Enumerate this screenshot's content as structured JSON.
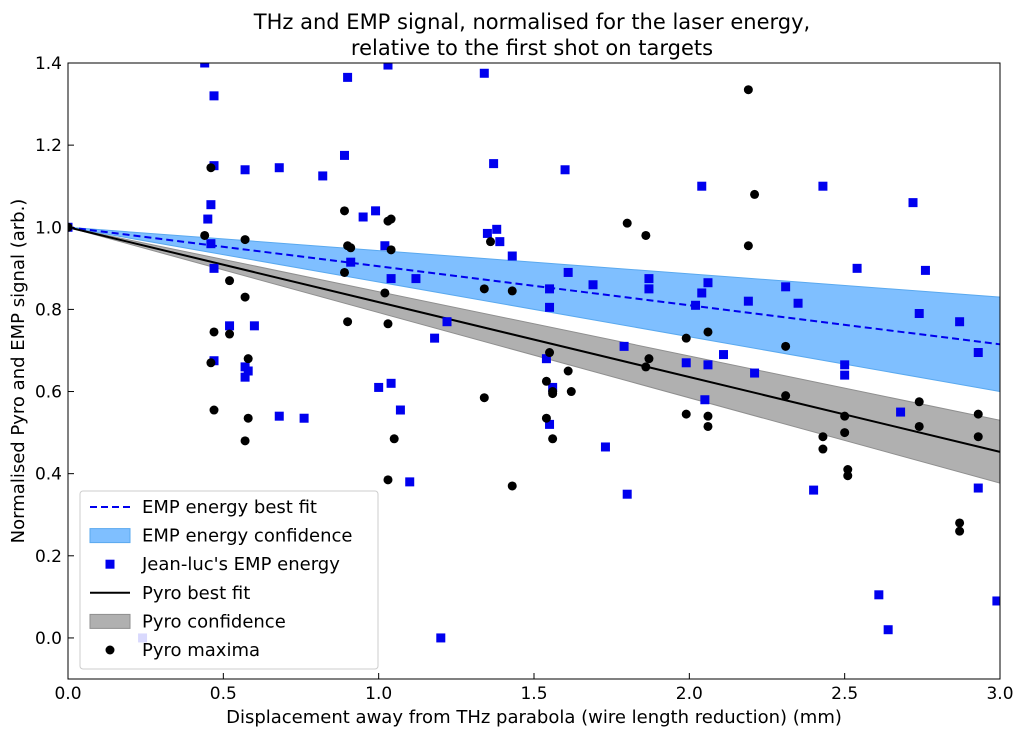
{
  "chart_data": {
    "type": "scatter",
    "title_lines": [
      "THz and EMP signal, normalised for the laser energy,",
      "relative to the first shot on targets"
    ],
    "xlabel": "Displacement away from THz parabola (wire length reduction) (mm)",
    "ylabel": "Normalised Pyro and EMP signal (arb.)",
    "xlim": [
      0.0,
      3.0
    ],
    "ylim": [
      -0.1,
      1.4
    ],
    "xticks": [
      "0.0",
      "0.5",
      "1.0",
      "1.5",
      "2.0",
      "2.5",
      "3.0"
    ],
    "yticks": [
      "0.0",
      "0.2",
      "0.4",
      "0.6",
      "0.8",
      "1.0",
      "1.2",
      "1.4"
    ],
    "grid": false,
    "legend_position": "lower-left",
    "colors": {
      "emp": "#0000ee",
      "emp_band": "#7fbfff",
      "pyro": "#000000",
      "pyro_band": "#b0b0b0"
    },
    "emp_fit": {
      "name": "EMP energy best fit",
      "points": [
        [
          0.0,
          1.0
        ],
        [
          3.0,
          0.715
        ]
      ],
      "style": "dashed"
    },
    "emp_band": {
      "name": "EMP energy confidence",
      "upper": [
        [
          0.0,
          1.0
        ],
        [
          3.0,
          0.83
        ]
      ],
      "lower": [
        [
          0.0,
          1.0
        ],
        [
          3.0,
          0.6
        ]
      ]
    },
    "pyro_fit": {
      "name": "Pyro best fit",
      "points": [
        [
          0.0,
          1.0
        ],
        [
          3.0,
          0.453
        ]
      ],
      "style": "solid"
    },
    "pyro_band": {
      "name": "Pyro confidence",
      "upper": [
        [
          0.0,
          1.0
        ],
        [
          3.0,
          0.53
        ]
      ],
      "lower": [
        [
          0.0,
          1.0
        ],
        [
          3.0,
          0.377
        ]
      ]
    },
    "emp_points": {
      "name": "Jean-luc's EMP energy",
      "x": [
        0.0,
        0.24,
        0.44,
        0.45,
        0.46,
        0.46,
        0.47,
        0.47,
        0.47,
        0.47,
        0.52,
        0.57,
        0.57,
        0.57,
        0.58,
        0.6,
        0.68,
        0.68,
        0.76,
        0.82,
        0.89,
        0.9,
        0.91,
        0.95,
        0.99,
        1.0,
        1.02,
        1.03,
        1.04,
        1.04,
        1.07,
        1.1,
        1.12,
        1.18,
        1.2,
        1.22,
        1.34,
        1.35,
        1.37,
        1.38,
        1.39,
        1.43,
        1.54,
        1.55,
        1.55,
        1.55,
        1.56,
        1.6,
        1.61,
        1.69,
        1.73,
        1.79,
        1.8,
        1.87,
        1.87,
        1.99,
        2.02,
        2.04,
        2.04,
        2.05,
        2.06,
        2.06,
        2.11,
        2.19,
        2.21,
        2.31,
        2.35,
        2.4,
        2.43,
        2.5,
        2.5,
        2.54,
        2.61,
        2.64,
        2.68,
        2.72,
        2.74,
        2.76,
        2.87,
        2.93,
        2.93,
        2.99
      ],
      "y": [
        1.0,
        0.0,
        1.4,
        1.02,
        1.055,
        0.96,
        1.32,
        1.15,
        0.9,
        0.675,
        0.76,
        1.14,
        0.66,
        0.635,
        0.65,
        0.76,
        1.145,
        0.54,
        0.535,
        1.125,
        1.175,
        1.365,
        0.915,
        1.025,
        1.04,
        0.61,
        0.955,
        1.395,
        0.875,
        0.62,
        0.555,
        0.38,
        0.875,
        0.73,
        0.0,
        0.77,
        1.375,
        0.985,
        1.155,
        0.995,
        0.965,
        0.93,
        0.68,
        0.805,
        0.85,
        0.52,
        0.61,
        1.14,
        0.89,
        0.86,
        0.465,
        0.71,
        0.35,
        0.875,
        0.85,
        0.67,
        0.81,
        1.1,
        0.84,
        0.58,
        0.865,
        0.665,
        0.69,
        0.82,
        0.645,
        0.855,
        0.815,
        0.36,
        1.1,
        0.64,
        0.665,
        0.9,
        0.105,
        0.02,
        0.55,
        1.06,
        0.79,
        0.895,
        0.77,
        0.695,
        0.365,
        0.09
      ]
    },
    "pyro_points": {
      "name": "Pyro maxima",
      "x": [
        0.0,
        0.44,
        0.46,
        0.46,
        0.47,
        0.47,
        0.52,
        0.52,
        0.57,
        0.57,
        0.57,
        0.58,
        0.58,
        0.89,
        0.89,
        0.9,
        0.9,
        0.91,
        1.02,
        1.03,
        1.03,
        1.03,
        1.04,
        1.04,
        1.05,
        1.34,
        1.34,
        1.36,
        1.43,
        1.43,
        1.54,
        1.54,
        1.55,
        1.56,
        1.56,
        1.56,
        1.61,
        1.62,
        1.8,
        1.86,
        1.86,
        1.87,
        1.99,
        1.99,
        2.06,
        2.06,
        2.06,
        2.19,
        2.19,
        2.21,
        2.31,
        2.31,
        2.43,
        2.43,
        2.5,
        2.5,
        2.51,
        2.51,
        2.74,
        2.74,
        2.87,
        2.87,
        2.93,
        2.93
      ],
      "y": [
        1.0,
        0.98,
        1.145,
        0.67,
        0.745,
        0.555,
        0.87,
        0.74,
        0.97,
        0.83,
        0.48,
        0.68,
        0.535,
        1.04,
        0.89,
        0.955,
        0.77,
        0.95,
        0.84,
        1.015,
        0.765,
        0.385,
        1.02,
        0.945,
        0.485,
        0.85,
        0.585,
        0.965,
        0.845,
        0.37,
        0.625,
        0.535,
        0.695,
        0.6,
        0.595,
        0.485,
        0.65,
        0.6,
        1.01,
        0.98,
        0.66,
        0.68,
        0.73,
        0.545,
        0.745,
        0.54,
        0.515,
        1.335,
        0.955,
        1.08,
        0.71,
        0.59,
        0.49,
        0.46,
        0.54,
        0.5,
        0.41,
        0.395,
        0.575,
        0.515,
        0.28,
        0.26,
        0.545,
        0.49
      ]
    },
    "legend": [
      "EMP energy best fit",
      "EMP energy confidence",
      "Jean-luc's EMP energy",
      "Pyro best fit",
      "Pyro confidence",
      "Pyro maxima"
    ]
  }
}
